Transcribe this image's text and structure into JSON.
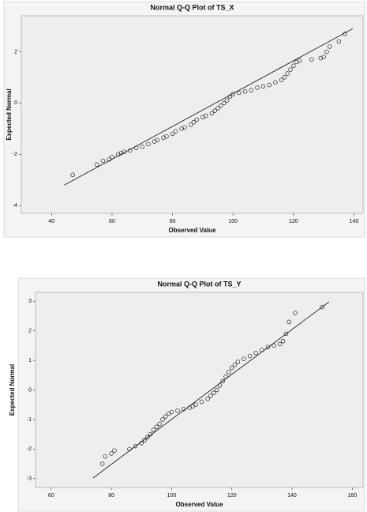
{
  "chart_data": [
    {
      "type": "scatter",
      "title": "Normal Q-Q Plot of TS_X",
      "x_label": "Observed Value",
      "y_label": "Expected Normal",
      "xlim": [
        30,
        143
      ],
      "ylim": [
        -4.3,
        3.4
      ],
      "xticks": [
        40,
        60,
        80,
        100,
        120,
        140
      ],
      "yticks": [
        2,
        0,
        -2,
        -4
      ],
      "reference_line": {
        "x": [
          44.2,
          139.6
        ],
        "y": [
          -3.2,
          2.9
        ]
      },
      "x": [
        47,
        55,
        57,
        59,
        60,
        62,
        63,
        64,
        66,
        68,
        70,
        72,
        74,
        75,
        77,
        78,
        80,
        81,
        83,
        84,
        86,
        87,
        88,
        90,
        91,
        93,
        94,
        95,
        96,
        97,
        98,
        99,
        100,
        102,
        104,
        106,
        108,
        110,
        112,
        114,
        116,
        117,
        118,
        119,
        120,
        121,
        122,
        126,
        129,
        130,
        131,
        132,
        135,
        137
      ],
      "y": [
        -2.8,
        -2.4,
        -2.25,
        -2.2,
        -2.1,
        -2.0,
        -1.95,
        -1.9,
        -1.85,
        -1.75,
        -1.7,
        -1.6,
        -1.5,
        -1.45,
        -1.35,
        -1.3,
        -1.2,
        -1.1,
        -1.0,
        -0.95,
        -0.85,
        -0.75,
        -0.65,
        -0.55,
        -0.5,
        -0.4,
        -0.3,
        -0.2,
        -0.1,
        0.0,
        0.1,
        0.25,
        0.35,
        0.4,
        0.45,
        0.5,
        0.6,
        0.65,
        0.7,
        0.8,
        0.9,
        1.0,
        1.15,
        1.3,
        1.45,
        1.6,
        1.65,
        1.7,
        1.75,
        1.8,
        2.0,
        2.2,
        2.4,
        2.7
      ]
    },
    {
      "type": "scatter",
      "title": "Normal Q-Q Plot of TS_Y",
      "x_label": "Observed Value",
      "y_label": "Expected Normal",
      "xlim": [
        54.8,
        163.6
      ],
      "ylim": [
        -3.3,
        3.3
      ],
      "xticks": [
        60,
        80,
        100,
        120,
        140,
        160
      ],
      "yticks": [
        3,
        2,
        1,
        0,
        -1,
        -2,
        -3
      ],
      "reference_line": {
        "x": [
          73.9,
          152.3
        ],
        "y": [
          -2.98,
          2.98
        ]
      },
      "x": [
        77,
        78,
        80,
        81,
        86,
        88,
        90,
        91,
        92,
        93,
        94,
        95,
        96,
        97,
        98,
        99,
        100,
        102,
        104,
        106,
        107,
        108,
        110,
        112,
        113,
        114,
        115,
        116,
        117,
        118,
        119,
        120,
        121,
        122,
        124,
        126,
        128,
        130,
        132,
        134,
        136,
        137,
        138,
        139,
        141,
        150
      ],
      "y": [
        -2.5,
        -2.25,
        -2.15,
        -2.05,
        -2.0,
        -1.9,
        -1.8,
        -1.7,
        -1.6,
        -1.5,
        -1.35,
        -1.25,
        -1.15,
        -1.0,
        -0.9,
        -0.8,
        -0.75,
        -0.7,
        -0.65,
        -0.6,
        -0.55,
        -0.5,
        -0.4,
        -0.3,
        -0.2,
        -0.1,
        0.0,
        0.15,
        0.3,
        0.45,
        0.6,
        0.75,
        0.85,
        0.95,
        1.05,
        1.15,
        1.25,
        1.35,
        1.45,
        1.5,
        1.55,
        1.65,
        1.9,
        2.3,
        2.6,
        2.8
      ]
    }
  ]
}
